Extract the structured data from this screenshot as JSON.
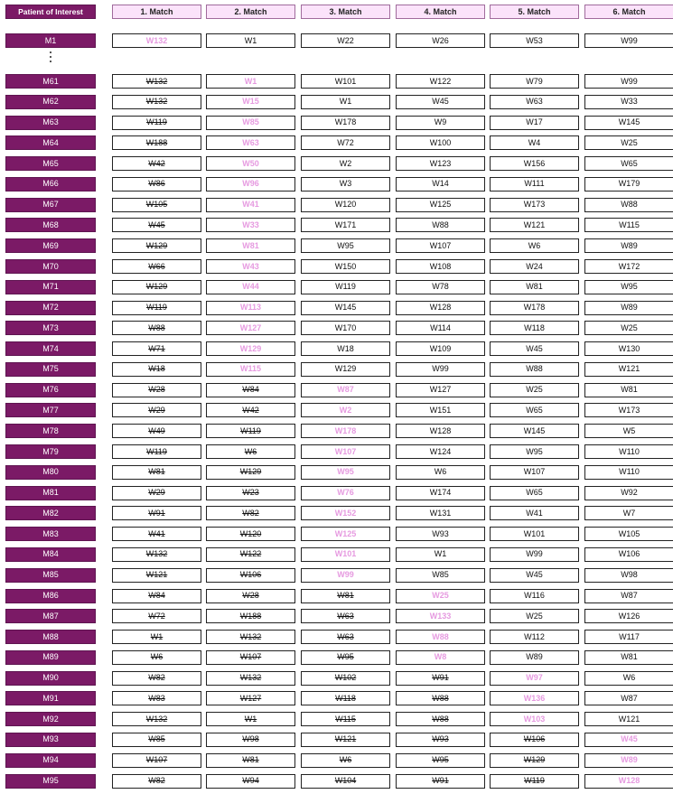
{
  "header": {
    "patient_label": "Patient of Interest",
    "match_labels": [
      "1. Match",
      "2. Match",
      "3. Match",
      "4. Match",
      "5. Match",
      "6. Match"
    ]
  },
  "ellipsis": "⋮",
  "rows": [
    {
      "patient": "M1",
      "matches": [
        "W132",
        "W1",
        "W22",
        "W26",
        "W53",
        "W99"
      ],
      "highlight": 0,
      "struck": 0
    },
    {
      "patient": "M61",
      "matches": [
        "W132",
        "W1",
        "W101",
        "W122",
        "W79",
        "W99"
      ],
      "highlight": 1,
      "struck": 1
    },
    {
      "patient": "M62",
      "matches": [
        "W132",
        "W15",
        "W1",
        "W45",
        "W63",
        "W33"
      ],
      "highlight": 1,
      "struck": 1
    },
    {
      "patient": "M63",
      "matches": [
        "W119",
        "W85",
        "W178",
        "W9",
        "W17",
        "W145"
      ],
      "highlight": 1,
      "struck": 1
    },
    {
      "patient": "M64",
      "matches": [
        "W188",
        "W63",
        "W72",
        "W100",
        "W4",
        "W25"
      ],
      "highlight": 1,
      "struck": 1
    },
    {
      "patient": "M65",
      "matches": [
        "W42",
        "W50",
        "W2",
        "W123",
        "W156",
        "W65"
      ],
      "highlight": 1,
      "struck": 1
    },
    {
      "patient": "M66",
      "matches": [
        "W86",
        "W96",
        "W3",
        "W14",
        "W111",
        "W179"
      ],
      "highlight": 1,
      "struck": 1
    },
    {
      "patient": "M67",
      "matches": [
        "W105",
        "W41",
        "W120",
        "W125",
        "W173",
        "W88"
      ],
      "highlight": 1,
      "struck": 1
    },
    {
      "patient": "M68",
      "matches": [
        "W45",
        "W33",
        "W171",
        "W88",
        "W121",
        "W115"
      ],
      "highlight": 1,
      "struck": 1
    },
    {
      "patient": "M69",
      "matches": [
        "W129",
        "W81",
        "W95",
        "W107",
        "W6",
        "W89"
      ],
      "highlight": 1,
      "struck": 1
    },
    {
      "patient": "M70",
      "matches": [
        "W66",
        "W43",
        "W150",
        "W108",
        "W24",
        "W172"
      ],
      "highlight": 1,
      "struck": 1
    },
    {
      "patient": "M71",
      "matches": [
        "W129",
        "W44",
        "W119",
        "W78",
        "W81",
        "W95"
      ],
      "highlight": 1,
      "struck": 1
    },
    {
      "patient": "M72",
      "matches": [
        "W119",
        "W113",
        "W145",
        "W128",
        "W178",
        "W89"
      ],
      "highlight": 1,
      "struck": 1
    },
    {
      "patient": "M73",
      "matches": [
        "W88",
        "W127",
        "W170",
        "W114",
        "W118",
        "W25"
      ],
      "highlight": 1,
      "struck": 1
    },
    {
      "patient": "M74",
      "matches": [
        "W71",
        "W129",
        "W18",
        "W109",
        "W45",
        "W130"
      ],
      "highlight": 1,
      "struck": 1
    },
    {
      "patient": "M75",
      "matches": [
        "W18",
        "W115",
        "W129",
        "W99",
        "W88",
        "W121"
      ],
      "highlight": 1,
      "struck": 1
    },
    {
      "patient": "M76",
      "matches": [
        "W28",
        "W84",
        "W87",
        "W127",
        "W25",
        "W81"
      ],
      "highlight": 2,
      "struck": 2
    },
    {
      "patient": "M77",
      "matches": [
        "W29",
        "W42",
        "W2",
        "W151",
        "W65",
        "W173"
      ],
      "highlight": 2,
      "struck": 2
    },
    {
      "patient": "M78",
      "matches": [
        "W49",
        "W119",
        "W178",
        "W128",
        "W145",
        "W5"
      ],
      "highlight": 2,
      "struck": 2
    },
    {
      "patient": "M79",
      "matches": [
        "W119",
        "W6",
        "W107",
        "W124",
        "W95",
        "W110"
      ],
      "highlight": 2,
      "struck": 2
    },
    {
      "patient": "M80",
      "matches": [
        "W81",
        "W129",
        "W95",
        "W6",
        "W107",
        "W110"
      ],
      "highlight": 2,
      "struck": 2
    },
    {
      "patient": "M81",
      "matches": [
        "W29",
        "W23",
        "W76",
        "W174",
        "W65",
        "W92"
      ],
      "highlight": 2,
      "struck": 2
    },
    {
      "patient": "M82",
      "matches": [
        "W91",
        "W82",
        "W152",
        "W131",
        "W41",
        "W7"
      ],
      "highlight": 2,
      "struck": 2
    },
    {
      "patient": "M83",
      "matches": [
        "W41",
        "W120",
        "W125",
        "W93",
        "W101",
        "W105"
      ],
      "highlight": 2,
      "struck": 2
    },
    {
      "patient": "M84",
      "matches": [
        "W132",
        "W122",
        "W101",
        "W1",
        "W99",
        "W106"
      ],
      "highlight": 2,
      "struck": 2
    },
    {
      "patient": "M85",
      "matches": [
        "W121",
        "W106",
        "W99",
        "W85",
        "W45",
        "W98"
      ],
      "highlight": 2,
      "struck": 2
    },
    {
      "patient": "M86",
      "matches": [
        "W84",
        "W28",
        "W81",
        "W25",
        "W116",
        "W87"
      ],
      "highlight": 3,
      "struck": 3
    },
    {
      "patient": "M87",
      "matches": [
        "W72",
        "W188",
        "W63",
        "W133",
        "W25",
        "W126"
      ],
      "highlight": 3,
      "struck": 3
    },
    {
      "patient": "M88",
      "matches": [
        "W1",
        "W132",
        "W63",
        "W88",
        "W112",
        "W117"
      ],
      "highlight": 3,
      "struck": 3
    },
    {
      "patient": "M89",
      "matches": [
        "W6",
        "W107",
        "W95",
        "W8",
        "W89",
        "W81"
      ],
      "highlight": 3,
      "struck": 3
    },
    {
      "patient": "M90",
      "matches": [
        "W82",
        "W132",
        "W102",
        "W91",
        "W97",
        "W6"
      ],
      "highlight": 4,
      "struck": 4
    },
    {
      "patient": "M91",
      "matches": [
        "W83",
        "W127",
        "W118",
        "W88",
        "W136",
        "W87"
      ],
      "highlight": 4,
      "struck": 4
    },
    {
      "patient": "M92",
      "matches": [
        "W132",
        "W1",
        "W115",
        "W88",
        "W103",
        "W121"
      ],
      "highlight": 4,
      "struck": 4
    },
    {
      "patient": "M93",
      "matches": [
        "W85",
        "W98",
        "W121",
        "W93",
        "W106",
        "W45"
      ],
      "highlight": 5,
      "struck": 5
    },
    {
      "patient": "M94",
      "matches": [
        "W107",
        "W81",
        "W6",
        "W95",
        "W129",
        "W89"
      ],
      "highlight": 5,
      "struck": 5
    },
    {
      "patient": "M95",
      "matches": [
        "W82",
        "W94",
        "W104",
        "W91",
        "W119",
        "W128"
      ],
      "highlight": 5,
      "struck": 5
    }
  ]
}
